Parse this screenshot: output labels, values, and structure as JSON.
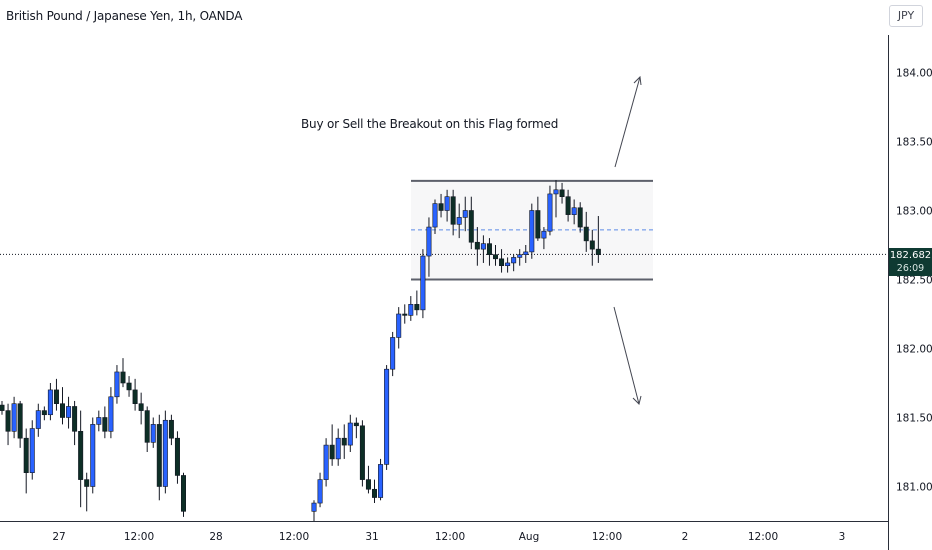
{
  "header": {
    "title": "British Pound / Japanese Yen, 1h, OANDA",
    "currency": "JPY"
  },
  "annotation": {
    "text": "Buy or Sell the Breakout on this Flag formed"
  },
  "price_tag": {
    "price": "182.682",
    "countdown": "26:09"
  },
  "colors": {
    "up": "#2962ff",
    "down": "#0d2e26",
    "wick": "#131722",
    "range_line": "#5d606b",
    "range_fill": "#f7f7f8",
    "mid_line": "#5b8ae6",
    "axis_text": "#131722",
    "price_tag_bg": "#0f3a32"
  },
  "chart_data": {
    "type": "candlestick",
    "title": "British Pound / Japanese Yen, 1h, OANDA",
    "x_tick_labels": [
      "27",
      "12:00",
      "28",
      "12:00",
      "31",
      "12:00",
      "Aug",
      "12:00",
      "2",
      "12:00",
      "3"
    ],
    "y_tick_labels": [
      "184.000",
      "183.500",
      "183.000",
      "182.500",
      "182.000",
      "181.500",
      "181.000"
    ],
    "y_ticks": [
      184.0,
      183.5,
      183.0,
      182.5,
      182.0,
      181.5,
      181.0
    ],
    "ylim": [
      180.75,
      184.35
    ],
    "last_price": 182.682,
    "range_box": {
      "top": 183.215,
      "bottom": 182.5,
      "mid": 182.86
    },
    "candles_day1": [
      [
        181.59,
        181.62,
        181.52,
        181.55
      ],
      [
        181.55,
        181.6,
        181.3,
        181.4
      ],
      [
        181.4,
        181.65,
        181.35,
        181.6
      ],
      [
        181.6,
        181.62,
        181.28,
        181.35
      ],
      [
        181.35,
        181.42,
        180.95,
        181.1
      ],
      [
        181.1,
        181.48,
        181.05,
        181.42
      ],
      [
        181.42,
        181.6,
        181.36,
        181.55
      ],
      [
        181.55,
        181.58,
        181.48,
        181.52
      ],
      [
        181.52,
        181.75,
        181.48,
        181.7
      ],
      [
        181.7,
        181.78,
        181.55,
        181.6
      ],
      [
        181.6,
        181.72,
        181.45,
        181.5
      ],
      [
        181.5,
        181.65,
        181.42,
        181.58
      ],
      [
        181.58,
        181.62,
        181.3,
        181.4
      ],
      [
        181.4,
        181.55,
        180.85,
        181.05
      ],
      [
        181.05,
        181.1,
        180.82,
        181.0
      ],
      [
        181.0,
        181.5,
        180.95,
        181.45
      ],
      [
        181.45,
        181.55,
        181.4,
        181.5
      ],
      [
        181.5,
        181.58,
        181.35,
        181.4
      ],
      [
        181.4,
        181.72,
        181.35,
        181.65
      ],
      [
        181.65,
        181.88,
        181.6,
        181.83
      ],
      [
        181.83,
        181.93,
        181.72,
        181.75
      ],
      [
        181.75,
        181.8,
        181.65,
        181.7
      ],
      [
        181.7,
        181.78,
        181.55,
        181.6
      ],
      [
        181.6,
        181.68,
        181.45,
        181.55
      ],
      [
        181.55,
        181.58,
        181.25,
        181.32
      ],
      [
        181.32,
        181.5,
        181.28,
        181.45
      ],
      [
        181.45,
        181.52,
        180.9,
        181.0
      ],
      [
        181.0,
        181.55,
        180.95,
        181.48
      ],
      [
        181.48,
        181.52,
        181.3,
        181.35
      ],
      [
        181.35,
        181.4,
        181.02,
        181.08
      ],
      [
        181.08,
        181.1,
        180.78,
        180.82
      ]
    ],
    "candles_day2": [
      [
        180.82,
        180.9,
        180.75,
        180.88
      ],
      [
        180.88,
        181.1,
        180.85,
        181.05
      ],
      [
        181.05,
        181.35,
        181.0,
        181.3
      ],
      [
        181.3,
        181.45,
        181.15,
        181.2
      ],
      [
        181.2,
        181.42,
        181.15,
        181.35
      ],
      [
        181.35,
        181.45,
        181.2,
        181.3
      ],
      [
        181.3,
        181.52,
        181.25,
        181.46
      ],
      [
        181.46,
        181.5,
        181.35,
        181.44
      ],
      [
        181.44,
        181.48,
        181.0,
        181.05
      ],
      [
        181.05,
        181.15,
        180.95,
        180.98
      ],
      [
        180.98,
        181.05,
        180.88,
        180.92
      ],
      [
        180.92,
        181.2,
        180.9,
        181.16
      ],
      [
        181.16,
        181.88,
        181.12,
        181.85
      ],
      [
        181.85,
        182.12,
        181.8,
        182.08
      ],
      [
        182.08,
        182.3,
        182.0,
        182.25
      ],
      [
        182.25,
        182.32,
        182.18,
        182.24
      ],
      [
        182.24,
        182.38,
        182.2,
        182.32
      ],
      [
        182.32,
        182.42,
        182.24,
        182.28
      ],
      [
        182.28,
        182.72,
        182.22,
        182.67
      ],
      [
        182.67,
        182.95,
        182.52,
        182.88
      ],
      [
        182.88,
        183.08,
        182.83,
        183.05
      ],
      [
        183.05,
        183.12,
        182.95,
        183.0
      ],
      [
        183.0,
        183.15,
        182.92,
        183.1
      ],
      [
        183.1,
        183.15,
        182.82,
        182.9
      ],
      [
        182.9,
        183.05,
        182.8,
        182.95
      ],
      [
        182.95,
        183.1,
        182.85,
        183.0
      ],
      [
        183.0,
        183.1,
        182.72,
        182.77
      ],
      [
        182.77,
        182.88,
        182.6,
        182.72
      ],
      [
        182.72,
        182.82,
        182.62,
        182.76
      ],
      [
        182.76,
        182.8,
        182.6,
        182.68
      ],
      [
        182.68,
        182.75,
        182.6,
        182.65
      ],
      [
        182.65,
        182.72,
        182.55,
        182.6
      ],
      [
        182.6,
        182.66,
        182.55,
        182.62
      ],
      [
        182.62,
        182.68,
        182.56,
        182.66
      ],
      [
        182.66,
        182.72,
        182.6,
        182.68
      ],
      [
        182.68,
        182.75,
        182.62,
        182.7
      ],
      [
        182.7,
        183.05,
        182.65,
        183.0
      ],
      [
        183.0,
        183.1,
        182.78,
        182.8
      ],
      [
        182.8,
        182.88,
        182.72,
        182.85
      ],
      [
        182.85,
        183.18,
        182.82,
        183.12
      ],
      [
        183.12,
        183.22,
        182.95,
        183.15
      ],
      [
        183.15,
        183.2,
        183.05,
        183.1
      ],
      [
        183.1,
        183.15,
        182.92,
        182.97
      ],
      [
        182.97,
        183.08,
        182.9,
        183.02
      ],
      [
        183.02,
        183.06,
        182.84,
        182.88
      ],
      [
        182.88,
        182.99,
        182.7,
        182.78
      ],
      [
        182.78,
        182.86,
        182.6,
        182.72
      ],
      [
        182.72,
        182.96,
        182.62,
        182.68
      ]
    ]
  }
}
